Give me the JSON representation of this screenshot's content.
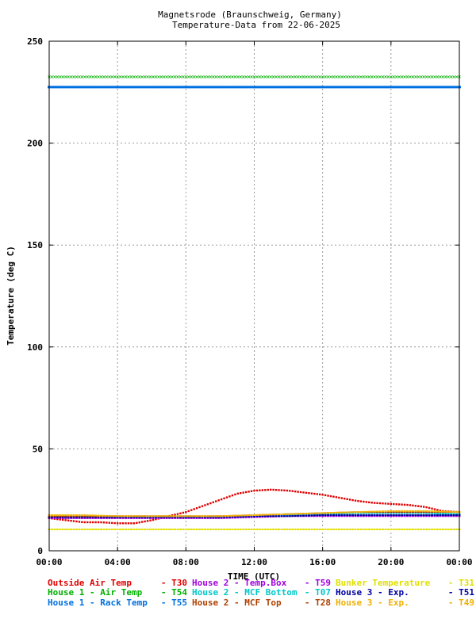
{
  "chart_data": {
    "type": "scatter",
    "title": "Magnetsrode (Braunschweig, Germany)",
    "subtitle": "Temperature-Data from 22-06-2025",
    "xlabel": "TIME (UTC)",
    "ylabel": "Temperature (deg C)",
    "xlim": [
      "00:00",
      "24:00"
    ],
    "ylim": [
      0,
      250
    ],
    "x_ticks": [
      "00:00",
      "04:00",
      "08:00",
      "12:00",
      "16:00",
      "20:00",
      "00:00"
    ],
    "y_ticks": [
      "0",
      "50",
      "100",
      "150",
      "200",
      "250"
    ],
    "grid": true,
    "legend_position": "bottom",
    "series": [
      {
        "name": "Outside Air Temp",
        "sensor": "T30",
        "color": "#e00000",
        "x": [
          0,
          1,
          2,
          3,
          4,
          5,
          6,
          7,
          8,
          9,
          10,
          11,
          12,
          13,
          14,
          15,
          16,
          17,
          18,
          19,
          20,
          21,
          22,
          23,
          24
        ],
        "y": [
          16,
          15,
          14,
          14,
          13.5,
          13.5,
          15,
          17,
          19,
          22,
          25,
          28,
          29.5,
          30,
          29.5,
          28.5,
          27.5,
          26,
          24.5,
          23.5,
          23,
          22.5,
          21.5,
          19.5,
          19
        ]
      },
      {
        "name": "House 2 - Temp.Box",
        "sensor": "T59",
        "color": "#a000e0",
        "x": [
          0,
          2,
          4,
          6,
          8,
          10,
          12,
          14,
          16,
          18,
          20,
          22,
          24
        ],
        "y": [
          16,
          16,
          16,
          16,
          16,
          16,
          16.5,
          17,
          17,
          17,
          17,
          17,
          17
        ]
      },
      {
        "name": "Bunker Temperature",
        "sensor": "T31",
        "color": "#e0e000",
        "x": [
          0,
          2,
          4,
          6,
          8,
          10,
          12,
          14,
          16,
          18,
          20,
          22,
          24
        ],
        "y": [
          10.5,
          10.5,
          10.5,
          10.5,
          10.5,
          10.5,
          10.5,
          10.5,
          10.5,
          10.5,
          10.5,
          10.5,
          10.5
        ]
      },
      {
        "name": "House 1 - Air  Temp",
        "sensor": "T54",
        "color": "#00b000",
        "x": [
          0,
          2,
          4,
          6,
          8,
          10,
          12,
          14,
          16,
          18,
          20,
          22,
          24
        ],
        "y": [
          232.5,
          232.5,
          232.5,
          232.5,
          232.5,
          232.5,
          232.5,
          232.5,
          232.5,
          232.5,
          232.5,
          232.5,
          232.5
        ]
      },
      {
        "name": "House 2 - MCF Bottom",
        "sensor": "T07",
        "color": "#00c8c8",
        "x": [
          0,
          2,
          4,
          6,
          8,
          10,
          12,
          14,
          16,
          18,
          20,
          22,
          24
        ],
        "y": [
          17,
          17,
          16.5,
          16.5,
          16.5,
          16.5,
          17,
          17.5,
          18,
          18.5,
          18.5,
          18.5,
          18
        ]
      },
      {
        "name": "House 3 - Exp.",
        "sensor": "T51",
        "color": "#0000a0",
        "x": [
          0,
          2,
          4,
          6,
          8,
          10,
          12,
          14,
          16,
          18,
          20,
          22,
          24
        ],
        "y": [
          16.5,
          16.5,
          16.5,
          16.5,
          16.5,
          16.5,
          17,
          17,
          17.5,
          17.5,
          17.5,
          17.5,
          17.5
        ]
      },
      {
        "name": "House 1 - Rack Temp",
        "sensor": "T55",
        "color": "#0070e0",
        "x": [
          0,
          2,
          4,
          6,
          8,
          10,
          12,
          14,
          16,
          18,
          20,
          22,
          24
        ],
        "y": [
          227.5,
          227.5,
          227.5,
          227.5,
          227.5,
          227.5,
          227.5,
          227.5,
          227.5,
          227.5,
          227.5,
          227.5,
          227.5
        ]
      },
      {
        "name": "House 2 - MCF Top",
        "sensor": "T28",
        "color": "#b04000",
        "x": [
          0,
          2,
          4,
          6,
          8,
          10,
          12,
          14,
          16,
          18,
          20,
          22,
          24
        ],
        "y": [
          17,
          17,
          17,
          17,
          17,
          17,
          17.5,
          18,
          18.5,
          19,
          19,
          19,
          19
        ]
      },
      {
        "name": "House 3 - Exp.",
        "sensor": "T49",
        "color": "#f0b000",
        "x": [
          0,
          2,
          4,
          6,
          8,
          10,
          12,
          14,
          16,
          18,
          20,
          22,
          24
        ],
        "y": [
          17.5,
          17.5,
          17,
          17,
          17,
          17,
          17.5,
          18,
          18.5,
          19,
          19.5,
          19.5,
          19
        ]
      }
    ]
  }
}
